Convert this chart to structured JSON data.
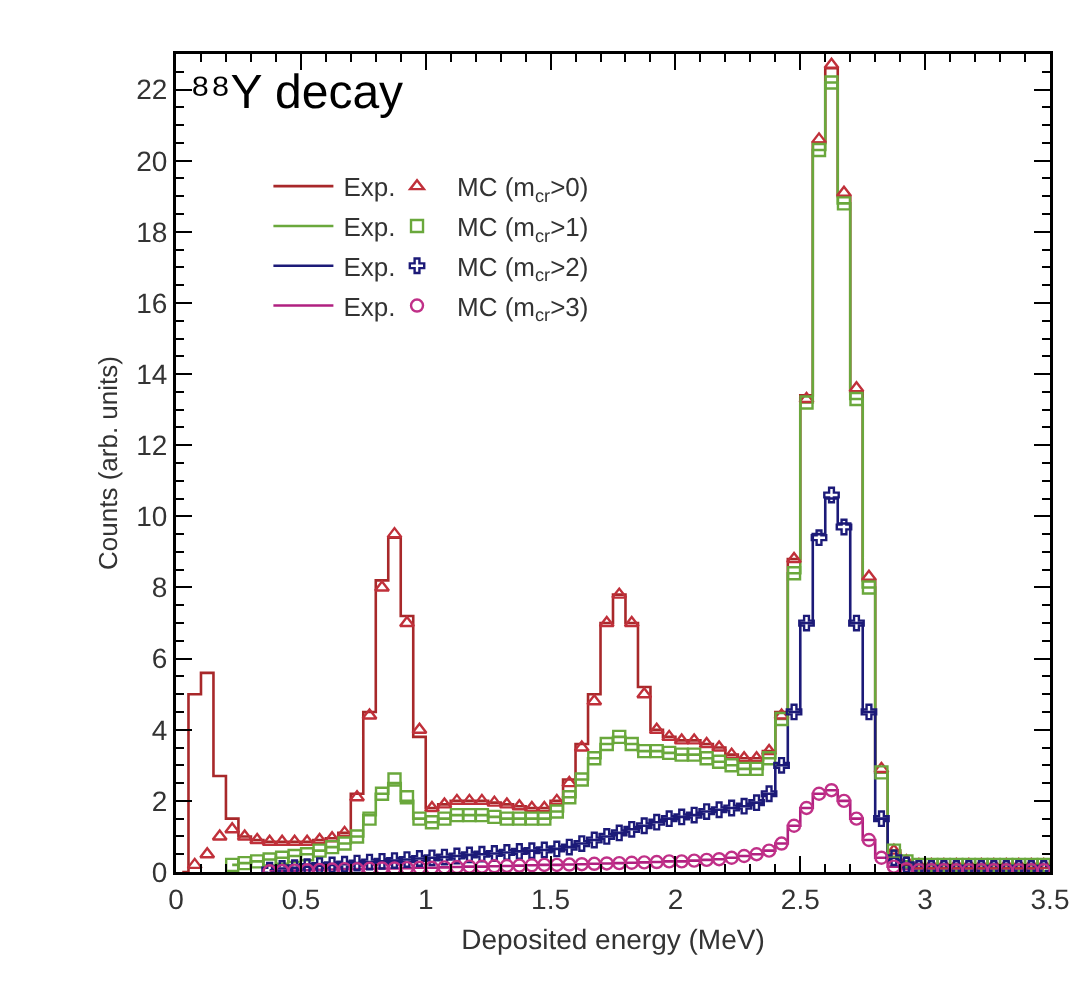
{
  "chart_data": {
    "type": "step",
    "title": "⁸⁸Y decay",
    "xlabel": "Deposited energy (MeV)",
    "ylabel": "Counts (arb. units)",
    "xlim": [
      0,
      3.5
    ],
    "xticks": [
      0,
      0.5,
      1,
      1.5,
      2,
      2.5,
      3,
      3.5
    ],
    "ylim": [
      0,
      23
    ],
    "yticks": [
      0,
      2,
      4,
      6,
      8,
      10,
      12,
      14,
      16,
      18,
      20,
      22
    ],
    "grid": false,
    "legend": "top",
    "x": [
      0.025,
      0.075,
      0.125,
      0.175,
      0.225,
      0.275,
      0.325,
      0.375,
      0.425,
      0.475,
      0.525,
      0.575,
      0.625,
      0.675,
      0.725,
      0.775,
      0.825,
      0.875,
      0.925,
      0.975,
      1.025,
      1.075,
      1.125,
      1.175,
      1.225,
      1.275,
      1.325,
      1.375,
      1.425,
      1.475,
      1.525,
      1.575,
      1.625,
      1.675,
      1.725,
      1.775,
      1.825,
      1.875,
      1.925,
      1.975,
      2.025,
      2.075,
      2.125,
      2.175,
      2.225,
      2.275,
      2.325,
      2.375,
      2.425,
      2.475,
      2.525,
      2.575,
      2.625,
      2.675,
      2.725,
      2.775,
      2.825,
      2.875,
      2.925,
      2.975,
      3.025,
      3.075,
      3.125,
      3.175,
      3.225,
      3.275,
      3.325,
      3.375,
      3.425,
      3.475
    ],
    "series": [
      {
        "name": "Exp.",
        "color": "#a8282a",
        "values": [
          0,
          5.0,
          5.6,
          2.7,
          1.5,
          1.0,
          0.9,
          0.85,
          0.85,
          0.85,
          0.85,
          0.9,
          0.95,
          1.1,
          2.2,
          4.5,
          8.2,
          9.4,
          7.2,
          3.8,
          1.8,
          1.9,
          2.0,
          2.0,
          2.0,
          1.95,
          1.9,
          1.85,
          1.8,
          1.8,
          2.0,
          2.6,
          3.6,
          5.0,
          7.0,
          7.8,
          7.0,
          5.2,
          4.0,
          3.8,
          3.7,
          3.7,
          3.6,
          3.5,
          3.3,
          3.2,
          3.2,
          3.4,
          4.5,
          8.8,
          13.4,
          20.5,
          22.6,
          19.0,
          13.5,
          8.2,
          2.8,
          0.6,
          0.3,
          0.2,
          0.2,
          0.2,
          0.2,
          0.2,
          0.2,
          0.2,
          0.2,
          0.2,
          0.2,
          0.2
        ]
      },
      {
        "name": "Exp.",
        "color": "#6aa83c",
        "values": [
          null,
          null,
          null,
          null,
          0.2,
          0.25,
          0.3,
          0.35,
          0.4,
          0.45,
          0.5,
          0.6,
          0.7,
          0.8,
          1.0,
          1.6,
          2.2,
          2.5,
          2.0,
          1.5,
          1.4,
          1.5,
          1.6,
          1.6,
          1.6,
          1.55,
          1.5,
          1.5,
          1.5,
          1.5,
          1.7,
          2.1,
          2.6,
          3.2,
          3.6,
          3.8,
          3.6,
          3.4,
          3.4,
          3.35,
          3.3,
          3.3,
          3.2,
          3.1,
          3.0,
          2.9,
          2.9,
          3.2,
          4.3,
          8.4,
          13.2,
          20.3,
          22.2,
          18.8,
          13.3,
          8.0,
          2.8,
          0.6,
          0.3,
          0.2,
          0.2,
          0.2,
          0.2,
          0.2,
          0.2,
          0.2,
          0.2,
          0.2,
          0.2,
          0.2
        ]
      },
      {
        "name": "Exp.",
        "color": "#1c1a78",
        "values": [
          null,
          null,
          null,
          null,
          null,
          null,
          null,
          0.05,
          0.1,
          0.12,
          0.15,
          0.18,
          0.2,
          0.22,
          0.25,
          0.28,
          0.3,
          0.32,
          0.35,
          0.38,
          0.4,
          0.42,
          0.45,
          0.48,
          0.5,
          0.52,
          0.55,
          0.58,
          0.6,
          0.62,
          0.65,
          0.7,
          0.8,
          0.9,
          1.0,
          1.1,
          1.2,
          1.3,
          1.4,
          1.5,
          1.55,
          1.6,
          1.7,
          1.75,
          1.8,
          1.85,
          1.95,
          2.2,
          3.0,
          4.5,
          7.0,
          9.5,
          10.5,
          9.8,
          7.0,
          4.5,
          1.5,
          0.4,
          0.2,
          0.1,
          0.1,
          0.1,
          0.1,
          0.1,
          0.1,
          0.1,
          0.1,
          0.1,
          0.1,
          0.1
        ]
      },
      {
        "name": "Exp.",
        "color": "#b02080",
        "values": [
          null,
          null,
          null,
          null,
          null,
          null,
          null,
          0.02,
          0.03,
          0.04,
          0.05,
          0.06,
          0.07,
          0.08,
          0.08,
          0.09,
          0.1,
          0.1,
          0.11,
          0.12,
          0.12,
          0.13,
          0.14,
          0.15,
          0.15,
          0.16,
          0.17,
          0.18,
          0.19,
          0.2,
          0.2,
          0.21,
          0.22,
          0.23,
          0.24,
          0.25,
          0.26,
          0.27,
          0.28,
          0.3,
          0.3,
          0.32,
          0.34,
          0.36,
          0.4,
          0.45,
          0.5,
          0.6,
          0.8,
          1.3,
          1.8,
          2.2,
          2.3,
          2.0,
          1.5,
          0.9,
          0.4,
          0.15,
          0.08,
          0.05,
          0.05,
          0.05,
          0.05,
          0.05,
          0.05,
          0.05,
          0.05,
          0.05,
          0.05,
          0.05
        ]
      },
      {
        "name": "MC (m$_{cr}$>0)",
        "type": "scatter",
        "marker": "triangle",
        "color": "#c0303a",
        "values": [
          null,
          0.2,
          0.5,
          1.0,
          1.2,
          1.0,
          0.9,
          0.85,
          0.85,
          0.85,
          0.85,
          0.9,
          0.95,
          1.1,
          2.1,
          4.4,
          8.0,
          9.5,
          7.0,
          4.0,
          1.8,
          1.9,
          2.0,
          2.0,
          2.0,
          1.95,
          1.9,
          1.85,
          1.8,
          1.8,
          2.0,
          2.5,
          3.5,
          4.8,
          7.0,
          7.8,
          7.0,
          5.0,
          4.0,
          3.8,
          3.7,
          3.7,
          3.6,
          3.5,
          3.3,
          3.2,
          3.2,
          3.4,
          4.4,
          8.8,
          13.3,
          20.6,
          22.7,
          19.1,
          13.6,
          8.3,
          2.9,
          0.6,
          0.3,
          0.2,
          0.2,
          0.2,
          0.2,
          0.2,
          0.2,
          0.2,
          0.2,
          0.2,
          0.2,
          0.2
        ]
      },
      {
        "name": "MC (m$_{cr}$>1)",
        "type": "scatter",
        "marker": "square",
        "color": "#6aa83c",
        "values": [
          null,
          null,
          null,
          null,
          0.2,
          0.25,
          0.3,
          0.35,
          0.4,
          0.45,
          0.5,
          0.6,
          0.7,
          0.8,
          1.0,
          1.5,
          2.2,
          2.6,
          2.1,
          1.5,
          1.4,
          1.5,
          1.6,
          1.6,
          1.6,
          1.55,
          1.5,
          1.5,
          1.5,
          1.5,
          1.7,
          2.1,
          2.6,
          3.2,
          3.6,
          3.8,
          3.6,
          3.4,
          3.4,
          3.35,
          3.3,
          3.3,
          3.2,
          3.1,
          3.0,
          2.9,
          2.9,
          3.2,
          4.3,
          8.4,
          13.2,
          20.3,
          22.2,
          18.8,
          13.3,
          8.0,
          2.8,
          0.6,
          0.3,
          0.2,
          0.2,
          0.2,
          0.2,
          0.2,
          0.2,
          0.2,
          0.2,
          0.2,
          0.2,
          0.2
        ]
      },
      {
        "name": "MC (m$_{cr}$>2)",
        "type": "scatter",
        "marker": "cross",
        "color": "#1c1a78",
        "values": [
          null,
          null,
          null,
          null,
          null,
          null,
          null,
          0.05,
          0.1,
          0.12,
          0.15,
          0.18,
          0.2,
          0.22,
          0.25,
          0.28,
          0.3,
          0.32,
          0.35,
          0.38,
          0.4,
          0.42,
          0.45,
          0.48,
          0.5,
          0.52,
          0.55,
          0.58,
          0.6,
          0.62,
          0.65,
          0.7,
          0.8,
          0.9,
          1.0,
          1.1,
          1.2,
          1.3,
          1.4,
          1.5,
          1.55,
          1.6,
          1.7,
          1.75,
          1.8,
          1.85,
          1.95,
          2.2,
          3.0,
          4.5,
          7.0,
          9.4,
          10.6,
          9.7,
          7.0,
          4.5,
          1.5,
          0.4,
          0.2,
          0.1,
          0.1,
          0.1,
          0.1,
          0.1,
          0.1,
          0.1,
          0.1,
          0.1,
          0.1,
          0.1
        ]
      },
      {
        "name": "MC (m$_{cr}$>3)",
        "type": "scatter",
        "marker": "circle",
        "color": "#c03088",
        "values": [
          null,
          null,
          null,
          null,
          null,
          null,
          null,
          0.02,
          0.03,
          0.04,
          0.05,
          0.06,
          0.07,
          0.08,
          0.08,
          0.09,
          0.1,
          0.1,
          0.11,
          0.12,
          0.12,
          0.13,
          0.14,
          0.15,
          0.15,
          0.16,
          0.17,
          0.18,
          0.19,
          0.2,
          0.2,
          0.21,
          0.22,
          0.23,
          0.24,
          0.25,
          0.26,
          0.27,
          0.28,
          0.3,
          0.3,
          0.32,
          0.34,
          0.36,
          0.4,
          0.45,
          0.5,
          0.6,
          0.8,
          1.3,
          1.8,
          2.2,
          2.3,
          2.0,
          1.5,
          0.9,
          0.4,
          0.15,
          0.08,
          0.05,
          0.05,
          0.05,
          0.05,
          0.05,
          0.05,
          0.05,
          0.05,
          0.05,
          0.05,
          0.05
        ]
      }
    ]
  }
}
